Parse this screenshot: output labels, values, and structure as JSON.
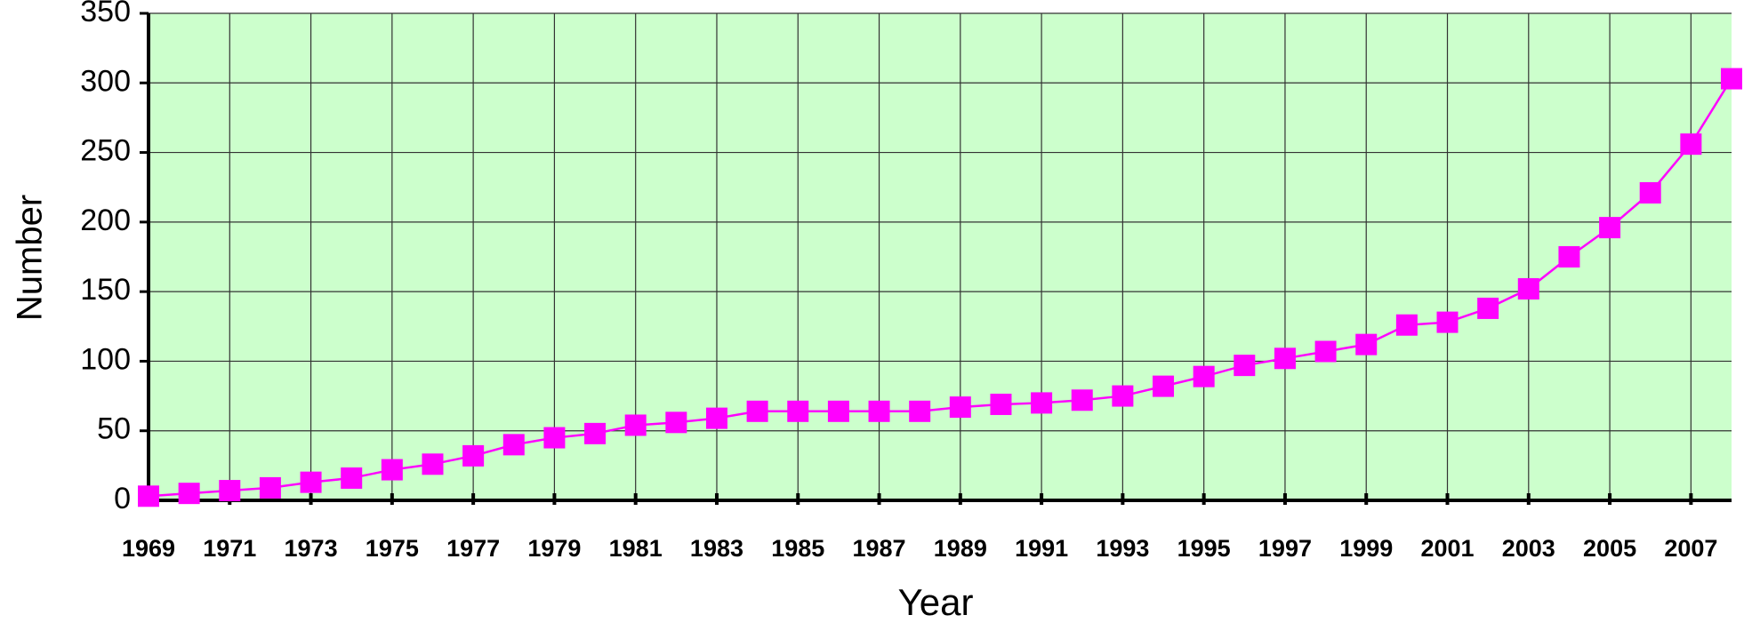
{
  "chart_data": {
    "type": "line",
    "x_label": "Year",
    "y_label": "Number",
    "x": [
      1969,
      1970,
      1971,
      1972,
      1973,
      1974,
      1975,
      1976,
      1977,
      1978,
      1979,
      1980,
      1981,
      1982,
      1983,
      1984,
      1985,
      1986,
      1987,
      1988,
      1989,
      1990,
      1991,
      1992,
      1993,
      1994,
      1995,
      1996,
      1997,
      1998,
      1999,
      2000,
      2001,
      2002,
      2003,
      2004,
      2005,
      2006,
      2007,
      2008
    ],
    "series": [
      {
        "color": "#ff00ff",
        "values": [
          3,
          5,
          7,
          9,
          13,
          16,
          22,
          26,
          32,
          40,
          45,
          48,
          54,
          56,
          59,
          64,
          64,
          64,
          64,
          64,
          67,
          69,
          70,
          72,
          75,
          82,
          89,
          97,
          102,
          107,
          112,
          126,
          128,
          138,
          152,
          175,
          196,
          221,
          256,
          303
        ]
      }
    ],
    "xlim": [
      1969,
      2008
    ],
    "xticks": [
      1969,
      1971,
      1973,
      1975,
      1977,
      1979,
      1981,
      1983,
      1985,
      1987,
      1989,
      1991,
      1993,
      1995,
      1997,
      1999,
      2001,
      2003,
      2005,
      2007
    ],
    "ylim": [
      0,
      350
    ],
    "yticks": [
      0,
      50,
      100,
      150,
      200,
      250,
      300,
      350
    ],
    "grid": true,
    "background": "#ccffcc"
  }
}
